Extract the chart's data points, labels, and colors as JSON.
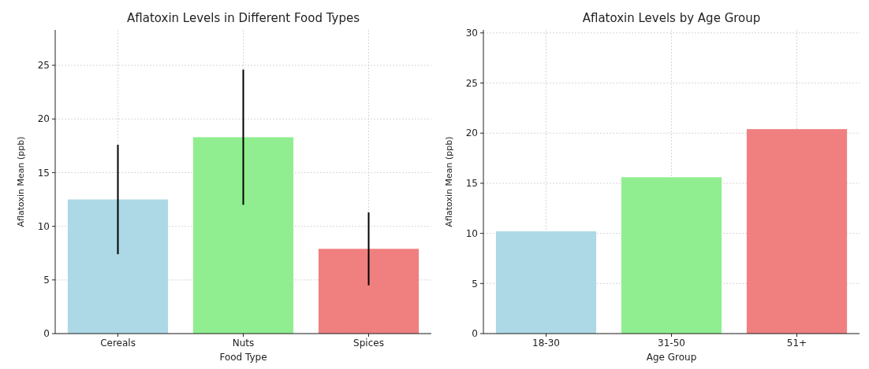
{
  "chart_data": [
    {
      "type": "bar",
      "title": "Aflatoxin Levels in Different Food Types",
      "xlabel": "Food Type",
      "ylabel": "Aflatoxin Mean (ppb)",
      "categories": [
        "Cereals",
        "Nuts",
        "Spices"
      ],
      "values": [
        12.5,
        18.3,
        7.9
      ],
      "errors": [
        5.1,
        6.3,
        3.4
      ],
      "colors": [
        "#add8e6",
        "#90ee90",
        "#f08080"
      ],
      "ylim": [
        0,
        28.3
      ],
      "yticks": [
        0,
        5,
        10,
        15,
        20,
        25
      ],
      "grid": true
    },
    {
      "type": "bar",
      "title": "Aflatoxin Levels by Age Group",
      "xlabel": "Age Group",
      "ylabel": "Aflatoxin Mean (ppb)",
      "categories": [
        "18-30",
        "31-50",
        "51+"
      ],
      "values": [
        10.2,
        15.6,
        20.4
      ],
      "colors": [
        "#add8e6",
        "#90ee90",
        "#f08080"
      ],
      "ylim": [
        0,
        30.3
      ],
      "yticks": [
        0,
        5,
        10,
        15,
        20,
        25,
        30
      ],
      "grid": true
    }
  ]
}
